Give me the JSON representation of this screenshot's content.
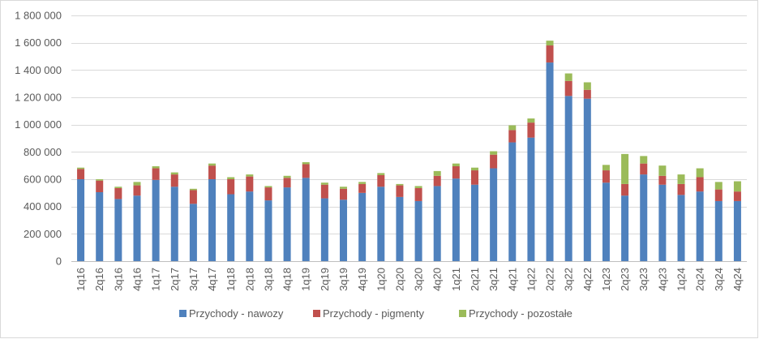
{
  "chart_data": {
    "type": "bar",
    "stacked": true,
    "title": "",
    "xlabel": "",
    "ylabel": "",
    "ylim": [
      0,
      1800000
    ],
    "yticks": [
      0,
      200000,
      400000,
      600000,
      800000,
      1000000,
      1200000,
      1400000,
      1600000,
      1800000
    ],
    "ytick_labels": [
      "0",
      "200 000",
      "400 000",
      "600 000",
      "800 000",
      "1 000 000",
      "1 200 000",
      "1 400 000",
      "1 600 000",
      "1 800 000"
    ],
    "grid": true,
    "legend_position": "bottom",
    "categories": [
      "1q16",
      "2q16",
      "3q16",
      "4q16",
      "1q17",
      "2q17",
      "3q17",
      "4q17",
      "1q18",
      "2q18",
      "3q18",
      "4q18",
      "1q19",
      "2q19",
      "3q19",
      "4q19",
      "1q20",
      "2q20",
      "3q20",
      "4q20",
      "1q21",
      "2q21",
      "3q21",
      "4q21",
      "1q22",
      "2q22",
      "3q22",
      "4q22",
      "1q23",
      "2q23",
      "3q23",
      "4q23",
      "1q24",
      "2q24",
      "3q24",
      "4q24"
    ],
    "series": [
      {
        "name": "Przychody - nawozy",
        "color": "#4f81bd",
        "values": [
          600000,
          505000,
          455000,
          480000,
          595000,
          545000,
          420000,
          600000,
          490000,
          510000,
          445000,
          540000,
          610000,
          460000,
          450000,
          500000,
          545000,
          470000,
          440000,
          550000,
          605000,
          560000,
          680000,
          870000,
          905000,
          1455000,
          1210000,
          1190000,
          575000,
          480000,
          635000,
          560000,
          485000,
          510000,
          440000,
          440000
        ]
      },
      {
        "name": "Przychody - pigmenty",
        "color": "#c0504d",
        "values": [
          75000,
          85000,
          80000,
          75000,
          85000,
          90000,
          100000,
          100000,
          110000,
          110000,
          95000,
          70000,
          100000,
          100000,
          80000,
          65000,
          85000,
          85000,
          95000,
          75000,
          90000,
          105000,
          100000,
          90000,
          110000,
          125000,
          110000,
          65000,
          90000,
          85000,
          80000,
          65000,
          80000,
          105000,
          85000,
          70000
        ]
      },
      {
        "name": "Przychody - pozostałe",
        "color": "#9bbb59",
        "values": [
          10000,
          10000,
          10000,
          25000,
          15000,
          15000,
          10000,
          15000,
          15000,
          15000,
          10000,
          15000,
          15000,
          15000,
          15000,
          15000,
          15000,
          10000,
          15000,
          35000,
          20000,
          20000,
          25000,
          35000,
          30000,
          35000,
          55000,
          55000,
          40000,
          220000,
          55000,
          75000,
          70000,
          65000,
          55000,
          75000
        ]
      }
    ]
  }
}
